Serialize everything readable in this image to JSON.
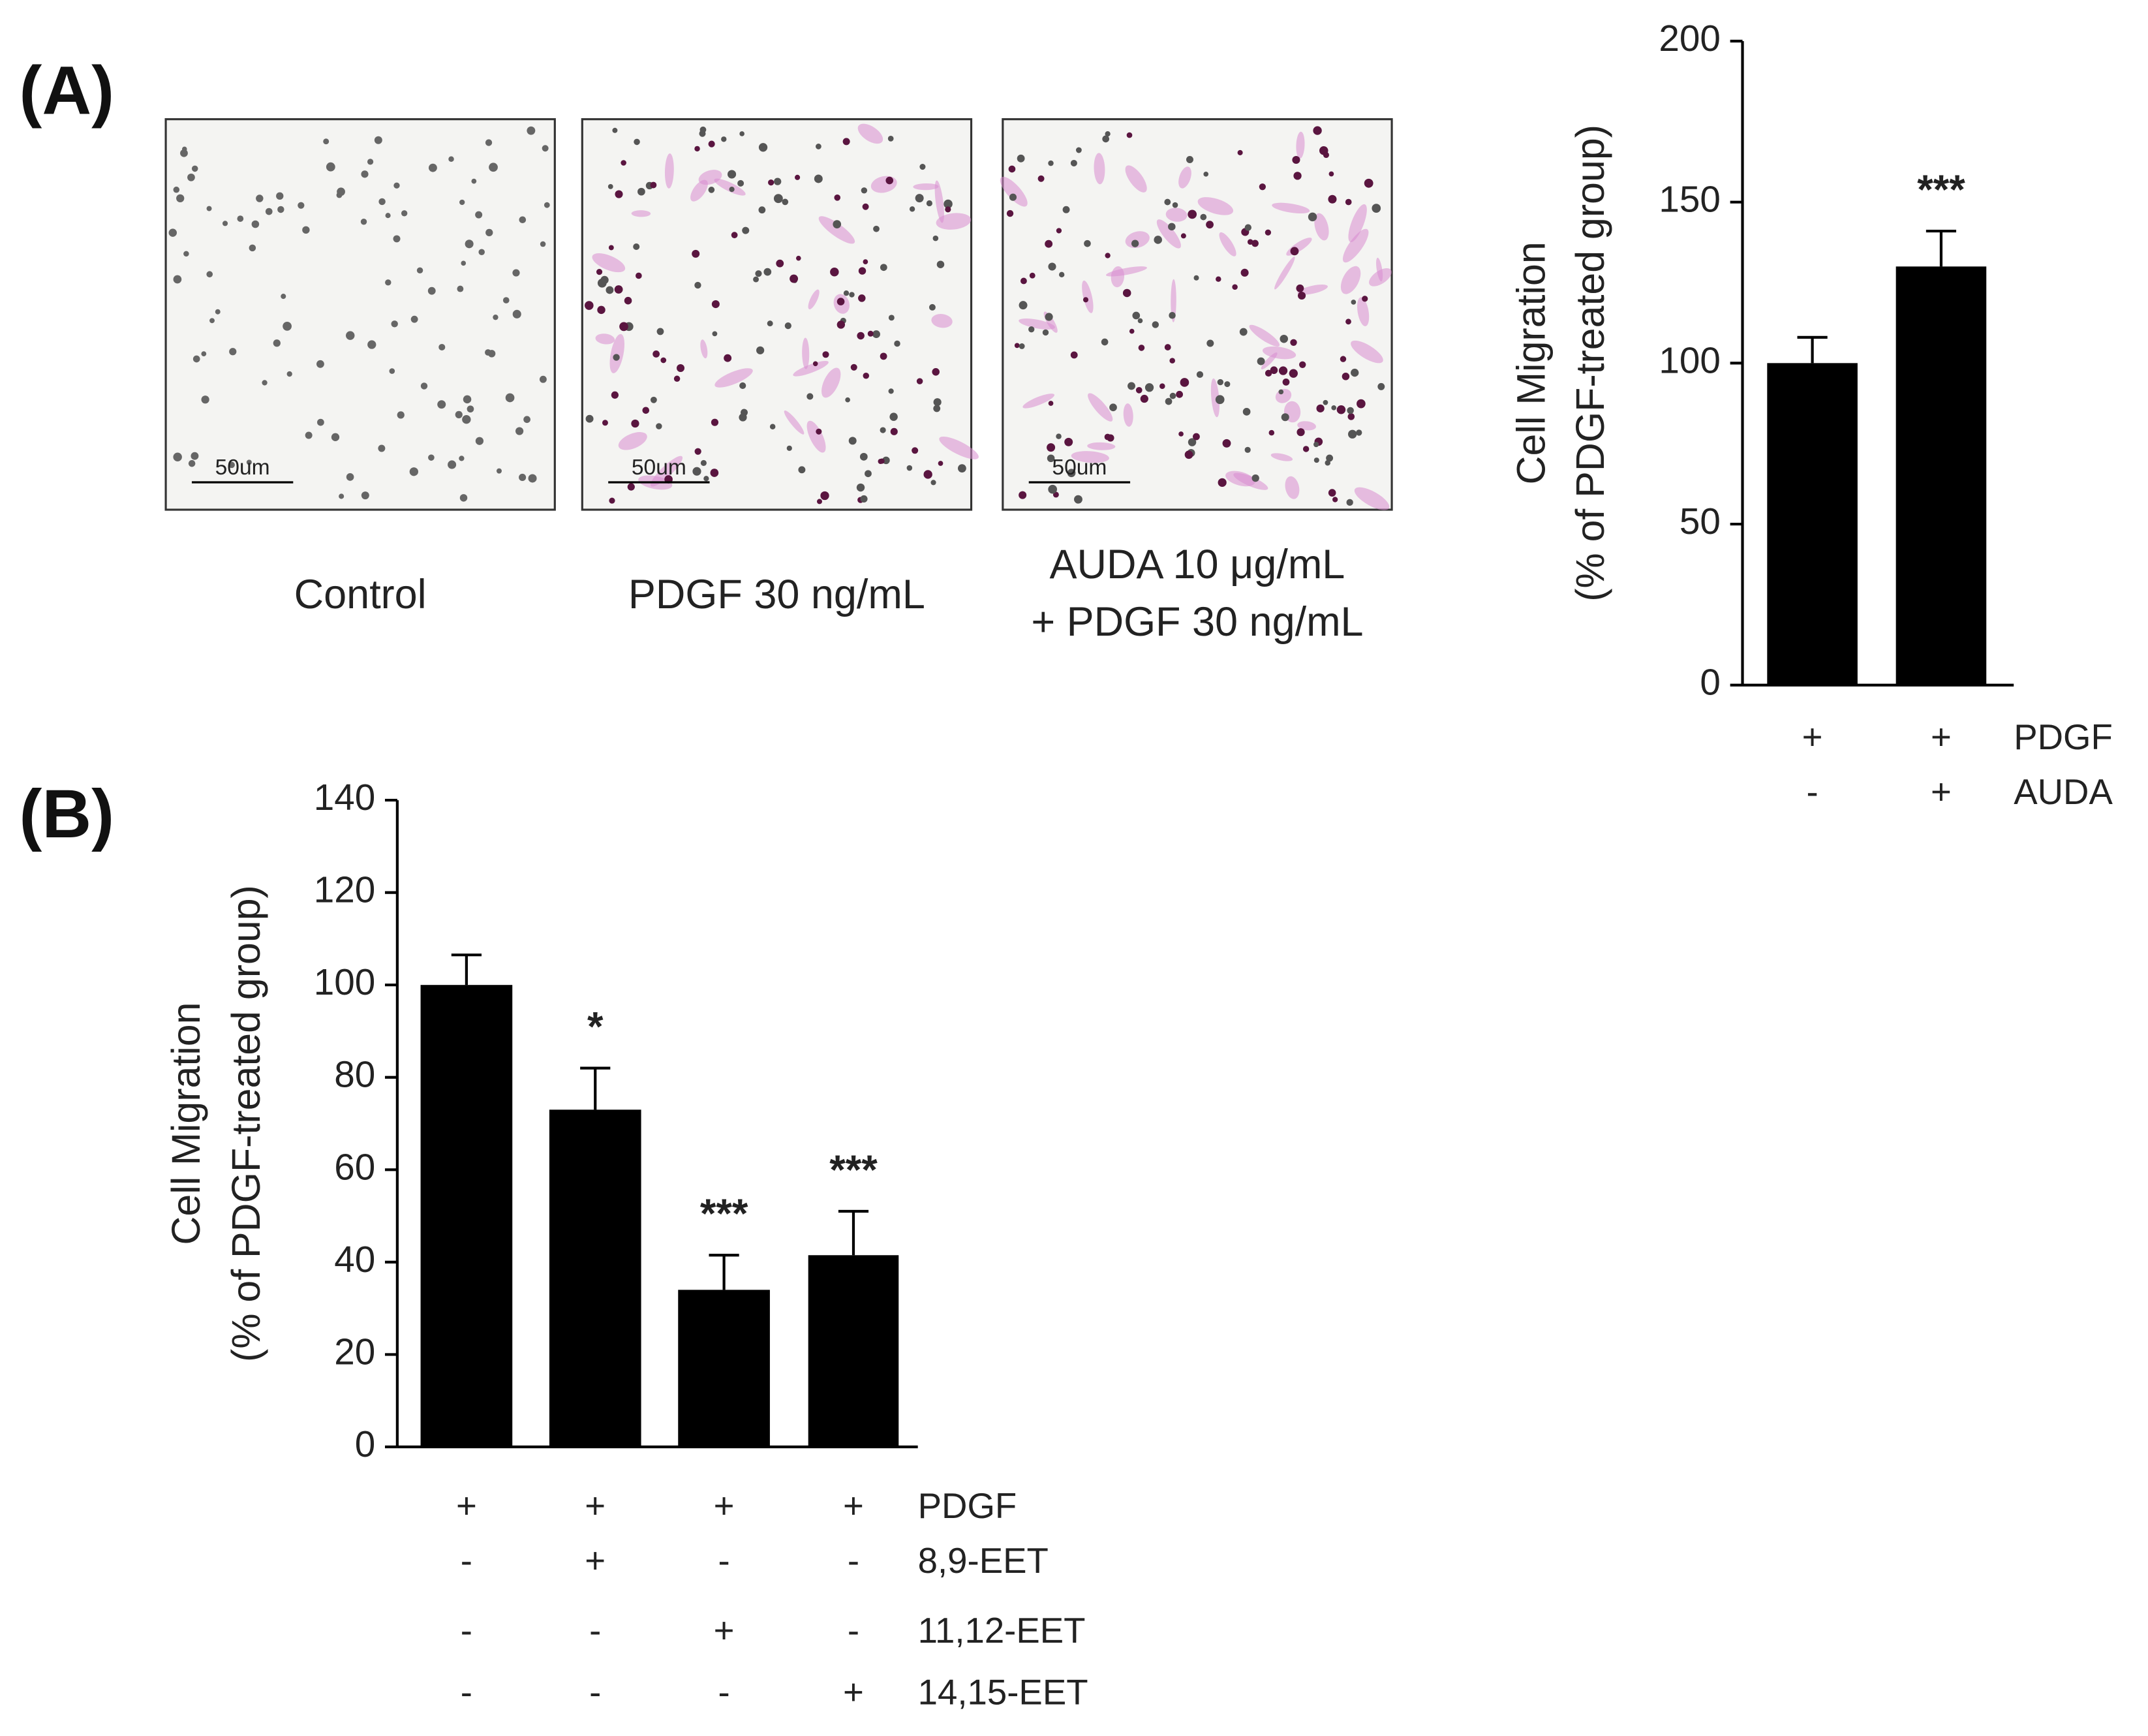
{
  "panels": [
    {
      "label": "(A)"
    },
    {
      "label": "(B)"
    }
  ],
  "images": [
    {
      "caption": [
        "Control"
      ],
      "scale_bar": "50um"
    },
    {
      "caption": [
        "PDGF 30 ng/mL"
      ],
      "scale_bar": "50um"
    },
    {
      "caption": [
        "AUDA 10 μg/mL",
        "+ PDGF 30 ng/mL"
      ],
      "scale_bar": "50um"
    }
  ],
  "chart_data": [
    {
      "type": "bar",
      "ylabel": [
        "Cell Migration",
        "(% of PDGF-treated group)"
      ],
      "ylim": [
        0,
        200
      ],
      "yticks": [
        0,
        50,
        100,
        150,
        200
      ],
      "color": "#000000",
      "values": [
        100,
        130
      ],
      "errors": [
        8,
        11
      ],
      "annotations": [
        null,
        "***"
      ],
      "treatments": [
        {
          "name": "PDGF",
          "marks": [
            "+",
            "+"
          ]
        },
        {
          "name": "AUDA",
          "marks": [
            "-",
            "+"
          ]
        }
      ]
    },
    {
      "type": "bar",
      "ylabel": [
        "Cell Migration",
        "(% of PDGF-treated group)"
      ],
      "ylim": [
        0,
        140
      ],
      "yticks": [
        0,
        20,
        40,
        60,
        80,
        100,
        120,
        140
      ],
      "color": "#000000",
      "values": [
        100,
        73,
        34,
        41.5
      ],
      "errors": [
        6.5,
        9,
        7.5,
        9.5
      ],
      "annotations": [
        null,
        "*",
        "***",
        "***"
      ],
      "treatments": [
        {
          "name": "PDGF",
          "marks": [
            "+",
            "+",
            "+",
            "+"
          ]
        },
        {
          "name": "8,9-EET",
          "marks": [
            "-",
            "+",
            "-",
            "-"
          ]
        },
        {
          "name": "11,12-EET",
          "marks": [
            "-",
            "-",
            "+",
            "-"
          ]
        },
        {
          "name": "14,15-EET",
          "marks": [
            "-",
            "-",
            "-",
            "+"
          ]
        }
      ]
    }
  ]
}
